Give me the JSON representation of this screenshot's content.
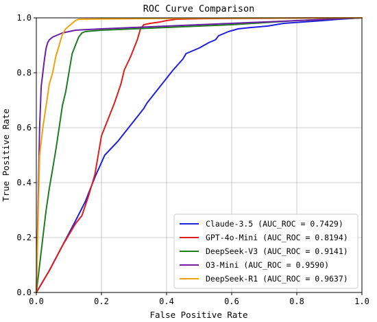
{
  "chart_data": {
    "type": "line",
    "title": "ROC Curve Comparison",
    "xlabel": "False Positive Rate",
    "ylabel": "True Positive Rate",
    "xlim": [
      0,
      1
    ],
    "ylim": [
      0,
      1
    ],
    "xticks": [
      "0.0",
      "0.2",
      "0.4",
      "0.6",
      "0.8",
      "1.0"
    ],
    "yticks": [
      "0.0",
      "0.2",
      "0.4",
      "0.6",
      "0.8",
      "1.0"
    ],
    "grid": true,
    "legend_position": "lower-right",
    "series": [
      {
        "name": "Claude-3.5 (AUC_ROC = 0.7429)",
        "color": "#1f1fdf",
        "x": [
          0,
          0.04,
          0.08,
          0.12,
          0.15,
          0.18,
          0.21,
          0.25,
          0.29,
          0.33,
          0.34,
          0.38,
          0.42,
          0.45,
          0.46,
          0.5,
          0.53,
          0.55,
          0.56,
          0.59,
          0.62,
          0.66,
          0.71,
          0.76,
          0.82,
          0.88,
          0.93,
          0.97,
          1.0
        ],
        "y": [
          0,
          0.08,
          0.17,
          0.26,
          0.33,
          0.42,
          0.5,
          0.55,
          0.61,
          0.67,
          0.69,
          0.75,
          0.81,
          0.85,
          0.87,
          0.89,
          0.91,
          0.92,
          0.935,
          0.95,
          0.96,
          0.965,
          0.97,
          0.98,
          0.985,
          0.99,
          0.995,
          0.998,
          1.0
        ]
      },
      {
        "name": "GPT-4o-Mini (AUC_ROC = 0.8194)",
        "color": "#e01b1b",
        "x": [
          0,
          0.04,
          0.08,
          0.12,
          0.14,
          0.16,
          0.18,
          0.2,
          0.22,
          0.24,
          0.26,
          0.27,
          0.29,
          0.3,
          0.31,
          0.32,
          0.33,
          0.35,
          0.38,
          0.4,
          0.43,
          0.5,
          0.6,
          0.8,
          1.0
        ],
        "y": [
          0,
          0.08,
          0.17,
          0.25,
          0.28,
          0.35,
          0.43,
          0.57,
          0.63,
          0.69,
          0.76,
          0.81,
          0.86,
          0.89,
          0.92,
          0.96,
          0.975,
          0.98,
          0.985,
          0.99,
          0.995,
          0.997,
          0.998,
          0.999,
          1.0
        ]
      },
      {
        "name": "DeepSeek-V3 (AUC_ROC = 0.9141)",
        "color": "#1e7b1e",
        "x": [
          0,
          0.01,
          0.02,
          0.03,
          0.04,
          0.05,
          0.06,
          0.07,
          0.08,
          0.09,
          0.1,
          0.11,
          0.12,
          0.13,
          0.14,
          0.15,
          0.2,
          0.3,
          0.4,
          0.6,
          0.8,
          1.0
        ],
        "y": [
          0,
          0.1,
          0.2,
          0.3,
          0.38,
          0.45,
          0.52,
          0.6,
          0.68,
          0.73,
          0.8,
          0.87,
          0.9,
          0.93,
          0.945,
          0.95,
          0.955,
          0.96,
          0.965,
          0.975,
          0.99,
          1.0
        ]
      },
      {
        "name": "O3-Mini (AUC_ROC = 0.9590)",
        "color": "#6a1ea6",
        "x": [
          0,
          0.005,
          0.01,
          0.015,
          0.02,
          0.025,
          0.03,
          0.035,
          0.04,
          0.05,
          0.06,
          0.07,
          0.08,
          0.1,
          0.12,
          0.2,
          0.3,
          0.4,
          0.5,
          0.6,
          0.8,
          1.0
        ],
        "y": [
          0,
          0.3,
          0.6,
          0.75,
          0.8,
          0.85,
          0.89,
          0.91,
          0.92,
          0.93,
          0.935,
          0.94,
          0.945,
          0.95,
          0.955,
          0.96,
          0.965,
          0.97,
          0.975,
          0.98,
          0.99,
          1.0
        ]
      },
      {
        "name": "DeepSeek-R1 (AUC_ROC = 0.9637)",
        "color": "#f0a10b",
        "x": [
          0,
          0.005,
          0.01,
          0.02,
          0.03,
          0.04,
          0.05,
          0.06,
          0.07,
          0.08,
          0.09,
          0.1,
          0.11,
          0.12,
          0.13,
          0.2,
          0.3,
          0.4,
          0.6,
          0.8,
          1.0
        ],
        "y": [
          0,
          0.25,
          0.5,
          0.6,
          0.68,
          0.76,
          0.8,
          0.86,
          0.9,
          0.94,
          0.96,
          0.97,
          0.98,
          0.99,
          0.995,
          0.996,
          0.997,
          0.998,
          0.999,
          0.9995,
          1.0
        ]
      }
    ]
  }
}
